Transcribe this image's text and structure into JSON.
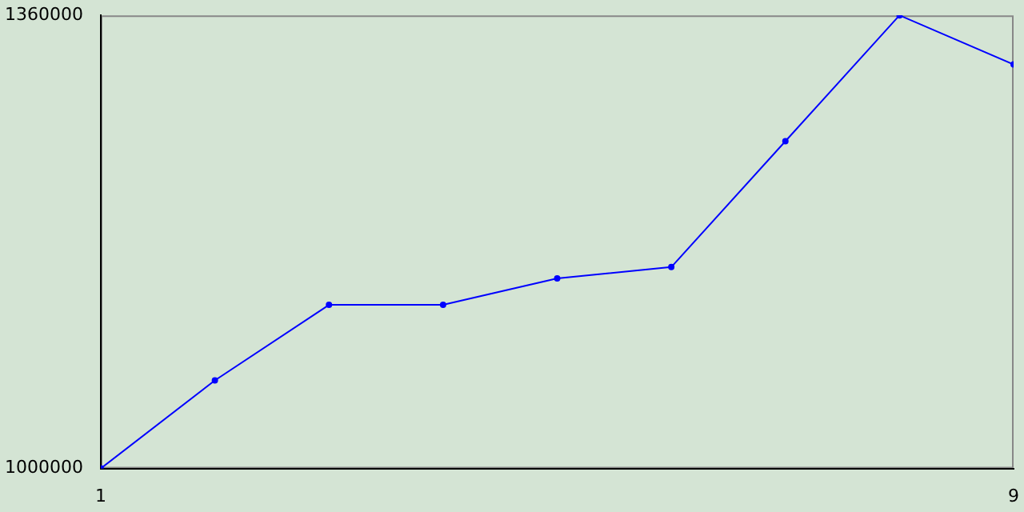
{
  "chart_data": {
    "type": "line",
    "x": [
      1,
      2,
      3,
      4,
      5,
      6,
      7,
      8,
      9
    ],
    "series": [
      {
        "color": "#0000ff",
        "values": [
          1000000,
          1070000,
          1130000,
          1130000,
          1151000,
          1160000,
          1260000,
          1360000,
          1321000
        ]
      }
    ],
    "xlim": [
      1,
      9
    ],
    "xticks": [
      1,
      9
    ],
    "ylim": [
      1000000,
      1360000
    ],
    "yticks": [
      1000000,
      1360000
    ],
    "grid": false,
    "legend": false,
    "marker": "circle",
    "line_style": "solid"
  }
}
